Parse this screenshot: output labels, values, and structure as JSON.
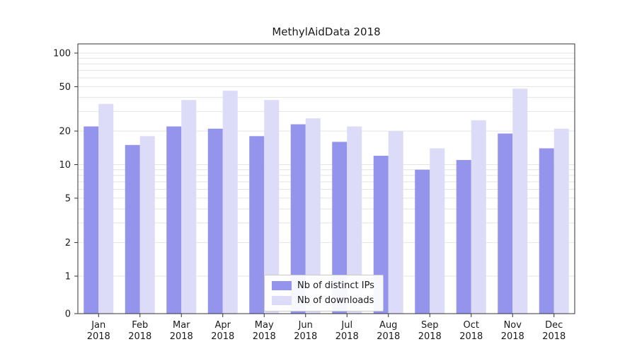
{
  "page": {
    "title": "MethylAidData 2018"
  },
  "chart_data": {
    "type": "bar",
    "title": "MethylAidData 2018",
    "year": "2018",
    "categories": [
      "Jan",
      "Feb",
      "Mar",
      "Apr",
      "May",
      "Jun",
      "Jul",
      "Aug",
      "Sep",
      "Oct",
      "Nov",
      "Dec"
    ],
    "series": [
      {
        "name": "Nb of distinct IPs",
        "color": "#9494ec",
        "values": [
          22,
          15,
          22,
          21,
          18,
          23,
          16,
          12,
          9,
          11,
          19,
          14
        ]
      },
      {
        "name": "Nb of downloads",
        "color": "#dcdcf8",
        "values": [
          35,
          18,
          38,
          46,
          38,
          26,
          22,
          20,
          14,
          25,
          48,
          21
        ]
      }
    ],
    "yscale": "log-with-zero-baseline",
    "yticks": [
      0,
      1,
      2,
      5,
      10,
      20,
      50,
      100
    ],
    "ylim": [
      0,
      130
    ],
    "grid": "horizontal log minor+major",
    "legend_position": "bottom-center-inside",
    "colors": {
      "grid": "#e4e4e4",
      "axis": "#333333",
      "text": "#1a1a1a"
    }
  }
}
